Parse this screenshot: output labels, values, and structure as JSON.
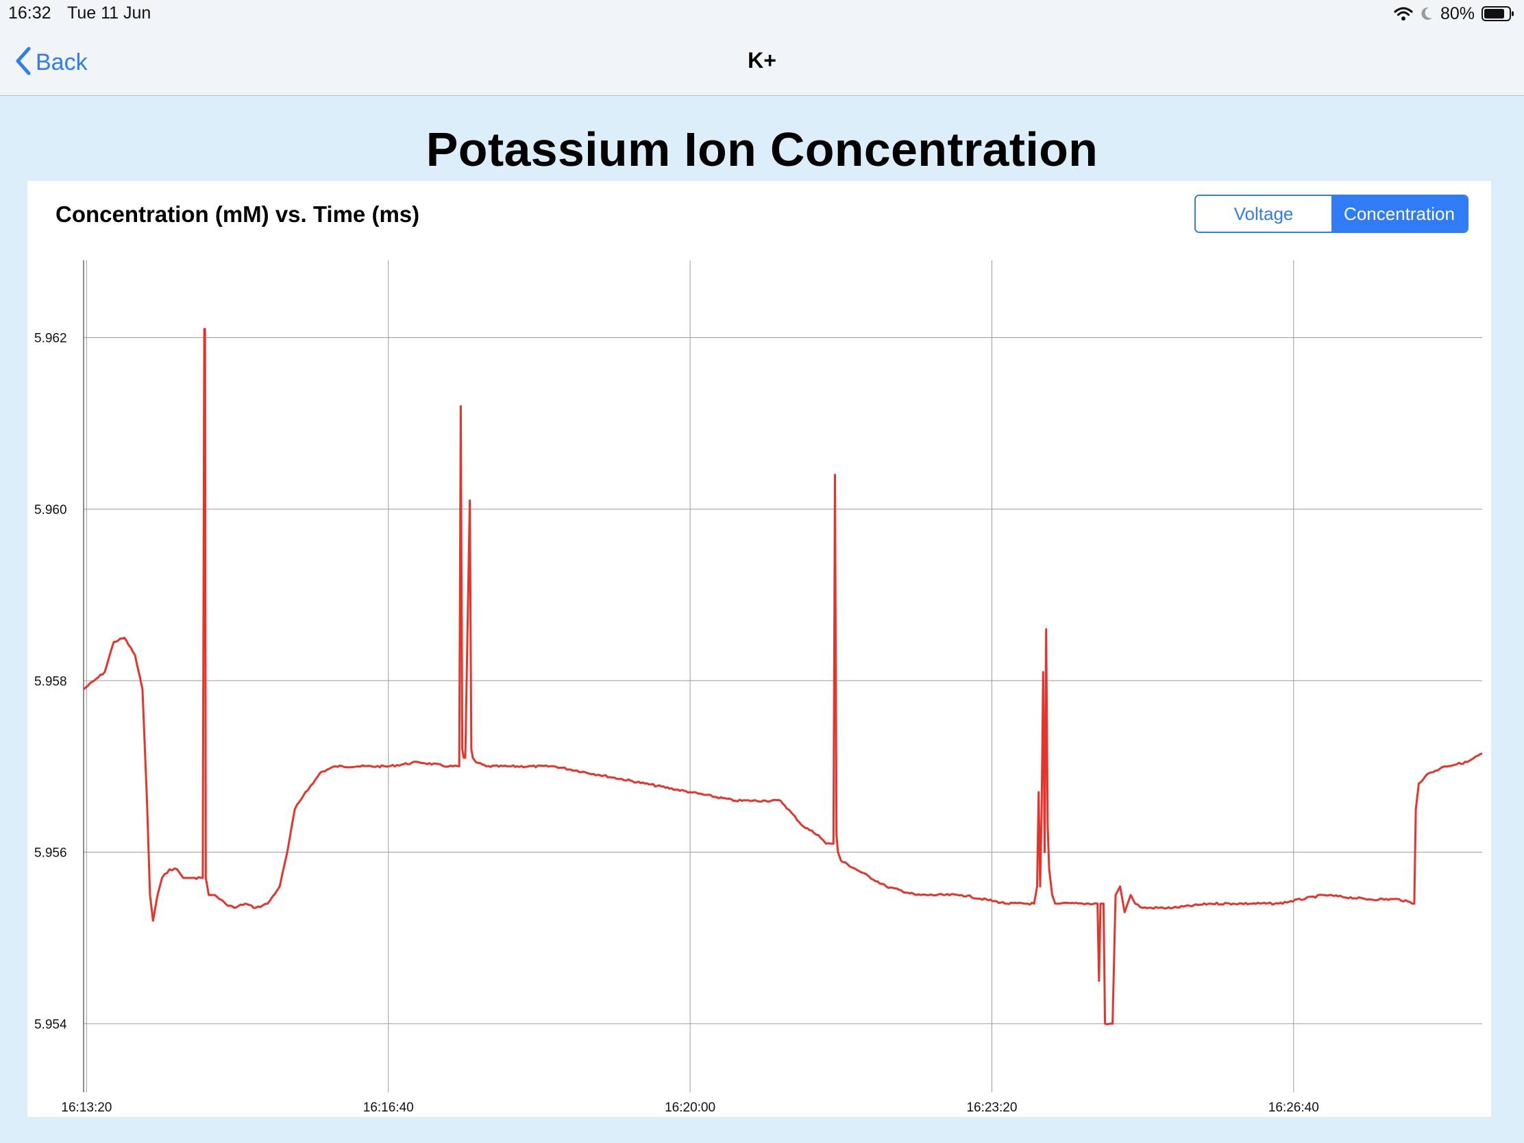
{
  "status": {
    "time": "16:32",
    "date": "Tue 11 Jun",
    "battery": "80%",
    "icons": [
      "wifi-icon",
      "moon-icon",
      "battery-icon"
    ]
  },
  "nav": {
    "back_label": "Back",
    "title": "K+"
  },
  "page": {
    "title": "Potassium Ion Concentration"
  },
  "card": {
    "chart_title": "Concentration (mM) vs. Time (ms)",
    "segments": [
      "Voltage",
      "Concentration"
    ],
    "selected_segment": "Concentration"
  },
  "colors": {
    "accent": "#2f7cf6",
    "line": "#e8332a",
    "background": "#dbeef9",
    "grid": "#9a9a9a"
  },
  "chart_data": {
    "type": "line",
    "title": "",
    "xlabel": "",
    "ylabel": "",
    "x_ticks": [
      "16:13:20",
      "16:16:40",
      "16:20:00",
      "16:23:20",
      "16:26:40"
    ],
    "y_ticks": [
      "5.954",
      "5.956",
      "5.958",
      "5.960",
      "5.962"
    ],
    "xlim": [
      "16:13:18",
      "16:28:45"
    ],
    "ylim": [
      5.9532,
      5.9629
    ],
    "grid": true,
    "legend": "none",
    "series": [
      {
        "x": [
          "16:13:18",
          "16:13:25",
          "16:13:32",
          "16:13:38",
          "16:13:45",
          "16:13:52",
          "16:13:57",
          "16:14:00",
          "16:14:02",
          "16:14:04",
          "16:14:05",
          "16:14:07",
          "16:14:10",
          "16:14:15",
          "16:14:20",
          "16:14:24",
          "16:14:27",
          "16:14:30",
          "16:14:37",
          "16:14:38",
          "16:14:38.5",
          "16:14:39",
          "16:14:40",
          "16:14:41",
          "16:14:45",
          "16:14:52",
          "16:14:58",
          "16:15:05",
          "16:15:12",
          "16:15:20",
          "16:15:28",
          "16:15:33",
          "16:15:38",
          "16:15:45",
          "16:15:50",
          "16:15:55",
          "16:16:05",
          "16:16:20",
          "16:16:40",
          "16:17:00",
          "16:17:20",
          "16:17:27",
          "16:17:28",
          "16:17:29",
          "16:17:30",
          "16:17:31",
          "16:17:34",
          "16:17:35",
          "16:17:36",
          "16:17:38",
          "16:17:45",
          "16:18:00",
          "16:18:30",
          "16:19:00",
          "16:19:30",
          "16:20:00",
          "16:20:30",
          "16:20:50",
          "16:21:00",
          "16:21:15",
          "16:21:25",
          "16:21:30",
          "16:21:35",
          "16:21:36",
          "16:21:37",
          "16:21:38",
          "16:21:40",
          "16:21:50",
          "16:22:10",
          "16:22:30",
          "16:23:00",
          "16:23:30",
          "16:23:48",
          "16:23:50",
          "16:23:51",
          "16:23:52",
          "16:23:53",
          "16:23:54",
          "16:23:55",
          "16:23:56",
          "16:23:57",
          "16:23:58",
          "16:24:00",
          "16:24:02",
          "16:24:05",
          "16:24:20",
          "16:24:30",
          "16:24:31",
          "16:24:32",
          "16:24:33",
          "16:24:34",
          "16:24:35",
          "16:24:40",
          "16:24:42",
          "16:24:45",
          "16:24:48",
          "16:24:50",
          "16:24:52",
          "16:24:55",
          "16:25:00",
          "16:25:20",
          "16:25:45",
          "16:26:00",
          "16:26:30",
          "16:27:00",
          "16:27:30",
          "16:27:50",
          "16:28:00",
          "16:28:01",
          "16:28:03",
          "16:28:08",
          "16:28:20",
          "16:28:35",
          "16:28:45"
        ],
        "y": [
          5.9579,
          5.958,
          5.9581,
          5.95845,
          5.9585,
          5.9583,
          5.9579,
          5.9566,
          5.9555,
          5.9552,
          5.9553,
          5.9555,
          5.9557,
          5.9558,
          5.9558,
          5.9557,
          5.9557,
          5.9557,
          5.9557,
          5.9621,
          5.9621,
          5.9557,
          5.9556,
          5.9555,
          5.9555,
          5.9554,
          5.95535,
          5.9554,
          5.95535,
          5.9554,
          5.9556,
          5.956,
          5.9565,
          5.9567,
          5.9568,
          5.95693,
          5.957,
          5.957,
          5.957,
          5.95705,
          5.957,
          5.957,
          5.9612,
          5.9572,
          5.9571,
          5.9571,
          5.9601,
          5.9572,
          5.9571,
          5.95705,
          5.957,
          5.957,
          5.957,
          5.9569,
          5.9568,
          5.9567,
          5.9566,
          5.9566,
          5.9566,
          5.9563,
          5.9562,
          5.9561,
          5.9561,
          5.9604,
          5.9562,
          5.956,
          5.9559,
          5.9558,
          5.9556,
          5.9555,
          5.9555,
          5.9554,
          5.9554,
          5.9556,
          5.9567,
          5.9556,
          5.9565,
          5.9581,
          5.956,
          5.9586,
          5.9563,
          5.9558,
          5.9555,
          5.9554,
          5.9554,
          5.9554,
          5.9554,
          5.9545,
          5.9554,
          5.9554,
          5.9554,
          5.954,
          5.954,
          5.9555,
          5.9556,
          5.9553,
          5.9554,
          5.9555,
          5.9554,
          5.95535,
          5.95535,
          5.9554,
          5.9554,
          5.9554,
          5.9555,
          5.95545,
          5.95545,
          5.9554,
          5.9565,
          5.9568,
          5.9569,
          5.957,
          5.95705,
          5.95715
        ]
      }
    ]
  }
}
